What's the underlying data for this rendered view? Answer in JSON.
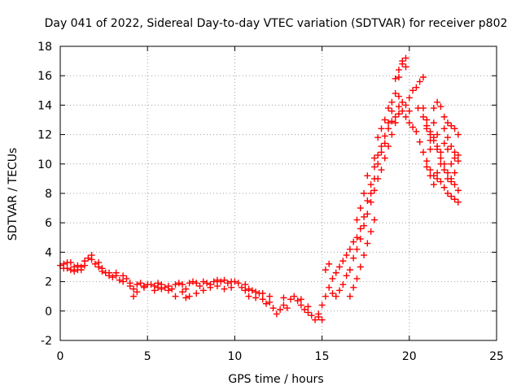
{
  "chart_data": {
    "type": "scatter",
    "title": "Day 041 of 2022, Sidereal Day-to-day VTEC variation (SDTVAR) for receiver p802",
    "xlabel": "GPS time / hours",
    "ylabel": "SDTVAR / TECUs",
    "xlim": [
      0,
      25
    ],
    "ylim": [
      -2,
      18
    ],
    "xticks": [
      0,
      5,
      10,
      15,
      20,
      25
    ],
    "yticks": [
      -2,
      0,
      2,
      4,
      6,
      8,
      10,
      12,
      14,
      16,
      18
    ],
    "grid": true,
    "marker": "plus",
    "series": [
      {
        "name": "SDTVAR p802",
        "color": "#ff0000",
        "points": [
          [
            0.0,
            3.1
          ],
          [
            0.2,
            3.2
          ],
          [
            0.4,
            2.9
          ],
          [
            0.6,
            3.3
          ],
          [
            0.8,
            3.0
          ],
          [
            1.0,
            3.1
          ],
          [
            1.2,
            2.8
          ],
          [
            1.4,
            3.4
          ],
          [
            1.6,
            3.6
          ],
          [
            1.8,
            3.5
          ],
          [
            2.0,
            3.2
          ],
          [
            2.2,
            3.0
          ],
          [
            2.4,
            2.9
          ],
          [
            2.6,
            2.6
          ],
          [
            2.8,
            2.4
          ],
          [
            3.0,
            2.3
          ],
          [
            3.2,
            2.4
          ],
          [
            3.4,
            2.1
          ],
          [
            3.6,
            2.0
          ],
          [
            3.8,
            2.2
          ],
          [
            4.0,
            1.9
          ],
          [
            4.2,
            1.5
          ],
          [
            4.4,
            1.8
          ],
          [
            4.6,
            1.9
          ],
          [
            4.8,
            1.7
          ],
          [
            5.0,
            1.8
          ],
          [
            5.2,
            1.8
          ],
          [
            5.4,
            1.7
          ],
          [
            5.6,
            1.6
          ],
          [
            5.8,
            1.8
          ],
          [
            6.0,
            1.6
          ],
          [
            6.2,
            1.7
          ],
          [
            6.4,
            1.5
          ],
          [
            6.6,
            1.8
          ],
          [
            6.8,
            1.9
          ],
          [
            7.0,
            1.8
          ],
          [
            7.2,
            1.5
          ],
          [
            7.4,
            1.9
          ],
          [
            7.6,
            2.0
          ],
          [
            7.8,
            1.9
          ],
          [
            8.0,
            1.7
          ],
          [
            8.2,
            2.0
          ],
          [
            8.4,
            1.9
          ],
          [
            8.6,
            1.8
          ],
          [
            8.8,
            2.0
          ],
          [
            9.0,
            2.1
          ],
          [
            9.2,
            2.0
          ],
          [
            9.4,
            2.1
          ],
          [
            9.6,
            1.9
          ],
          [
            9.8,
            2.0
          ],
          [
            10.0,
            2.0
          ],
          [
            10.2,
            1.9
          ],
          [
            10.4,
            1.6
          ],
          [
            10.6,
            1.8
          ],
          [
            10.8,
            1.5
          ],
          [
            11.0,
            1.4
          ],
          [
            11.2,
            1.3
          ],
          [
            11.4,
            1.2
          ],
          [
            11.6,
            0.8
          ],
          [
            11.8,
            0.5
          ],
          [
            12.0,
            0.6
          ],
          [
            12.2,
            0.2
          ],
          [
            12.4,
            -0.2
          ],
          [
            12.6,
            0.1
          ],
          [
            12.8,
            0.4
          ],
          [
            13.0,
            0.2
          ],
          [
            13.2,
            0.8
          ],
          [
            13.4,
            1.0
          ],
          [
            13.6,
            0.7
          ],
          [
            13.8,
            0.4
          ],
          [
            14.0,
            0.1
          ],
          [
            14.2,
            -0.1
          ],
          [
            14.4,
            -0.3
          ],
          [
            14.6,
            -0.6
          ],
          [
            14.8,
            -0.2
          ],
          [
            15.0,
            0.4
          ],
          [
            15.2,
            1.0
          ],
          [
            15.4,
            1.6
          ],
          [
            15.6,
            2.2
          ],
          [
            15.8,
            2.6
          ],
          [
            16.0,
            3.0
          ],
          [
            16.2,
            3.4
          ],
          [
            16.4,
            3.8
          ],
          [
            16.6,
            4.2
          ],
          [
            16.8,
            4.7
          ],
          [
            17.0,
            5.0
          ],
          [
            17.2,
            5.6
          ],
          [
            17.4,
            6.4
          ],
          [
            17.6,
            7.5
          ],
          [
            17.8,
            8.6
          ],
          [
            18.0,
            9.8
          ],
          [
            18.2,
            10.6
          ],
          [
            18.4,
            11.2
          ],
          [
            18.6,
            11.9
          ],
          [
            18.8,
            12.8
          ],
          [
            19.0,
            13.6
          ],
          [
            19.2,
            14.8
          ],
          [
            19.4,
            15.9
          ],
          [
            19.6,
            16.8
          ],
          [
            19.8,
            17.2
          ],
          [
            20.0,
            14.5
          ],
          [
            20.2,
            15.0
          ],
          [
            20.4,
            15.2
          ],
          [
            20.6,
            15.6
          ],
          [
            20.8,
            15.9
          ],
          [
            21.0,
            12.4
          ],
          [
            21.2,
            12.0
          ],
          [
            21.4,
            11.6
          ],
          [
            21.6,
            11.0
          ],
          [
            21.8,
            10.4
          ],
          [
            22.0,
            10.0
          ],
          [
            22.2,
            9.4
          ],
          [
            22.4,
            9.0
          ],
          [
            22.6,
            8.6
          ],
          [
            22.8,
            8.2
          ],
          [
            15.2,
            2.8
          ],
          [
            15.4,
            3.2
          ],
          [
            15.6,
            1.2
          ],
          [
            15.8,
            1.0
          ],
          [
            16.0,
            1.4
          ],
          [
            16.2,
            1.8
          ],
          [
            16.4,
            2.4
          ],
          [
            16.6,
            2.8
          ],
          [
            16.8,
            3.6
          ],
          [
            17.0,
            4.2
          ],
          [
            17.2,
            4.9
          ],
          [
            17.4,
            5.8
          ],
          [
            17.6,
            6.6
          ],
          [
            17.8,
            7.4
          ],
          [
            18.0,
            8.2
          ],
          [
            18.2,
            9.0
          ],
          [
            18.4,
            9.6
          ],
          [
            18.6,
            10.4
          ],
          [
            18.8,
            11.2
          ],
          [
            19.0,
            12.0
          ],
          [
            19.2,
            12.8
          ],
          [
            19.4,
            13.4
          ],
          [
            19.6,
            13.6
          ],
          [
            19.8,
            13.2
          ],
          [
            20.0,
            12.8
          ],
          [
            20.2,
            12.5
          ],
          [
            20.4,
            12.2
          ],
          [
            20.6,
            11.5
          ],
          [
            20.8,
            10.8
          ],
          [
            21.0,
            10.2
          ],
          [
            21.2,
            9.6
          ],
          [
            21.4,
            9.2
          ],
          [
            21.6,
            9.0
          ],
          [
            21.8,
            8.8
          ],
          [
            22.0,
            8.4
          ],
          [
            22.2,
            8.0
          ],
          [
            22.4,
            7.8
          ],
          [
            22.6,
            7.6
          ],
          [
            22.8,
            7.4
          ],
          [
            17.8,
            8.0
          ],
          [
            18.0,
            9.0
          ],
          [
            18.2,
            10.0
          ],
          [
            18.4,
            10.8
          ],
          [
            18.6,
            11.4
          ],
          [
            18.8,
            12.4
          ],
          [
            19.0,
            12.9
          ],
          [
            19.2,
            13.2
          ],
          [
            19.4,
            13.9
          ],
          [
            19.6,
            14.2
          ],
          [
            19.8,
            14.0
          ],
          [
            20.0,
            13.6
          ],
          [
            20.5,
            13.8
          ],
          [
            20.8,
            13.2
          ],
          [
            21.0,
            12.6
          ],
          [
            21.2,
            12.2
          ],
          [
            21.4,
            13.8
          ],
          [
            21.6,
            14.2
          ],
          [
            21.8,
            13.9
          ],
          [
            22.0,
            13.2
          ],
          [
            22.2,
            12.8
          ],
          [
            22.4,
            12.6
          ],
          [
            22.6,
            12.4
          ],
          [
            22.8,
            12.0
          ],
          [
            21.0,
            9.8
          ],
          [
            21.2,
            9.2
          ],
          [
            21.4,
            8.6
          ],
          [
            21.6,
            9.4
          ],
          [
            21.8,
            10.0
          ],
          [
            22.0,
            9.6
          ],
          [
            22.2,
            9.0
          ],
          [
            22.4,
            8.8
          ],
          [
            22.6,
            9.4
          ],
          [
            22.8,
            10.2
          ],
          [
            21.2,
            11.0
          ],
          [
            21.4,
            11.8
          ],
          [
            21.6,
            11.2
          ],
          [
            21.8,
            10.8
          ],
          [
            22.0,
            11.4
          ],
          [
            22.2,
            11.8
          ],
          [
            22.4,
            11.2
          ],
          [
            22.6,
            10.8
          ],
          [
            22.8,
            10.6
          ],
          [
            20.8,
            13.8
          ],
          [
            21.0,
            13.0
          ],
          [
            21.2,
            11.6
          ],
          [
            21.4,
            12.8
          ],
          [
            21.6,
            12.0
          ],
          [
            22.0,
            12.4
          ],
          [
            22.2,
            11.0
          ],
          [
            22.4,
            10.0
          ],
          [
            22.6,
            10.4
          ],
          [
            16.6,
            1.0
          ],
          [
            16.8,
            1.6
          ],
          [
            17.0,
            2.2
          ],
          [
            17.2,
            3.0
          ],
          [
            17.4,
            3.8
          ],
          [
            17.6,
            4.6
          ],
          [
            17.8,
            5.4
          ],
          [
            18.0,
            6.2
          ],
          [
            15.0,
            -0.6
          ],
          [
            14.8,
            -0.4
          ],
          [
            14.2,
            0.3
          ],
          [
            13.8,
            0.8
          ],
          [
            12.8,
            0.9
          ],
          [
            12.0,
            1.0
          ],
          [
            11.6,
            1.2
          ],
          [
            11.2,
            0.9
          ],
          [
            10.8,
            1.0
          ],
          [
            10.6,
            1.4
          ],
          [
            9.8,
            1.6
          ],
          [
            9.4,
            1.5
          ],
          [
            9.0,
            1.7
          ],
          [
            8.6,
            1.6
          ],
          [
            8.2,
            1.4
          ],
          [
            7.8,
            1.2
          ],
          [
            7.4,
            1.0
          ],
          [
            7.2,
            0.9
          ],
          [
            7.0,
            1.3
          ],
          [
            6.6,
            1.0
          ],
          [
            6.2,
            1.4
          ],
          [
            5.8,
            1.5
          ],
          [
            5.6,
            1.9
          ],
          [
            5.4,
            1.4
          ],
          [
            4.8,
            1.6
          ],
          [
            4.4,
            1.3
          ],
          [
            4.2,
            1.0
          ],
          [
            4.0,
            1.7
          ],
          [
            3.6,
            2.4
          ],
          [
            3.2,
            2.6
          ],
          [
            2.8,
            2.6
          ],
          [
            2.4,
            2.7
          ],
          [
            2.2,
            3.3
          ],
          [
            1.8,
            3.8
          ],
          [
            1.4,
            3.1
          ],
          [
            1.2,
            3.0
          ],
          [
            1.0,
            2.8
          ],
          [
            0.8,
            2.7
          ],
          [
            0.6,
            2.8
          ],
          [
            0.4,
            3.3
          ],
          [
            0.2,
            2.9
          ],
          [
            19.2,
            15.8
          ],
          [
            19.4,
            16.4
          ],
          [
            19.6,
            17.0
          ],
          [
            19.8,
            16.6
          ],
          [
            19.4,
            14.6
          ],
          [
            19.0,
            14.2
          ],
          [
            18.8,
            13.8
          ],
          [
            18.6,
            13.0
          ],
          [
            18.4,
            12.4
          ],
          [
            18.2,
            11.8
          ],
          [
            18.0,
            10.4
          ],
          [
            17.6,
            9.2
          ],
          [
            17.4,
            8.0
          ],
          [
            17.2,
            7.0
          ],
          [
            17.0,
            6.2
          ]
        ]
      }
    ]
  }
}
